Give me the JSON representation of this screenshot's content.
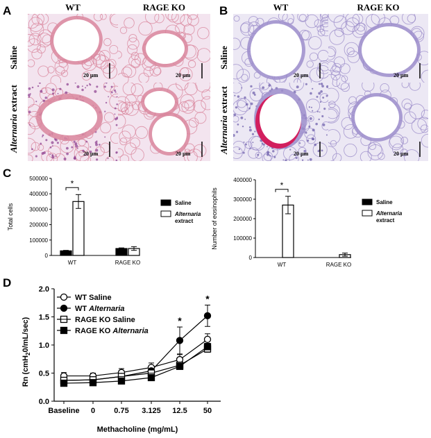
{
  "panels": {
    "A": {
      "letter": "A",
      "col_headers": [
        "WT",
        "RAGE KO"
      ],
      "row_headers": [
        {
          "parts": [
            {
              "text": "Saline",
              "italic": false
            }
          ]
        },
        {
          "parts": [
            {
              "text": "Alternaria",
              "italic": true
            },
            {
              "text": " extract",
              "italic": false
            }
          ]
        }
      ],
      "scale_bar": "20 µm"
    },
    "B": {
      "letter": "B",
      "col_headers": [
        "WT",
        "RAGE KO"
      ],
      "row_headers": [
        {
          "parts": [
            {
              "text": "Saline",
              "italic": false
            }
          ]
        },
        {
          "parts": [
            {
              "text": "Alternaria",
              "italic": true
            },
            {
              "text": " extract",
              "italic": false
            }
          ]
        }
      ],
      "scale_bar": "20 µm"
    },
    "C": {
      "letter": "C"
    },
    "D": {
      "letter": "D"
    }
  },
  "colors": {
    "he_background": "#f3e4ef",
    "he_tissue": "#d9879e",
    "pas_background": "#ece8f4",
    "pas_tissue": "#9e8ecb",
    "pas_mucus": "#d21f5e"
  },
  "chart_data": [
    {
      "id": "total-cells",
      "type": "bar",
      "categories": [
        "WT",
        "RAGE KO"
      ],
      "ylabel": "Total cells",
      "ylim": [
        0,
        500000
      ],
      "yticks": [
        0,
        100000,
        200000,
        300000,
        400000,
        500000
      ],
      "series": [
        {
          "name": "Saline",
          "fill": "#000000",
          "values": [
            30000,
            45000
          ],
          "errors": [
            3000,
            4000
          ]
        },
        {
          "name": "Alternaria extract",
          "name_italic": "Alternaria",
          "name_rest": "extract",
          "fill": "#ffffff",
          "values": [
            350000,
            45000
          ],
          "errors": [
            45000,
            12000
          ]
        }
      ],
      "significance": [
        {
          "category": "WT",
          "label": "*"
        }
      ],
      "legend": "right"
    },
    {
      "id": "eosinophils",
      "type": "bar",
      "categories": [
        "WT",
        "RAGE KO"
      ],
      "ylabel": "Number of eosinophils",
      "ylim": [
        0,
        400000
      ],
      "yticks": [
        0,
        100000,
        200000,
        300000,
        400000
      ],
      "series": [
        {
          "name": "Saline",
          "fill": "#000000",
          "values": [
            0,
            0
          ],
          "errors": [
            0,
            0
          ]
        },
        {
          "name": "Alternaria extract",
          "name_italic": "Alternaria",
          "name_rest": "extract",
          "fill": "#ffffff",
          "values": [
            270000,
            15000
          ],
          "errors": [
            45000,
            8000
          ]
        }
      ],
      "significance": [
        {
          "category": "WT",
          "label": "*"
        }
      ],
      "legend": "right"
    },
    {
      "id": "airway-resistance",
      "type": "line",
      "categories": [
        "Baseline",
        "0",
        "0.75",
        "3.125",
        "12.5",
        "50"
      ],
      "xlabel": "Methacholine (mg/mL)",
      "ylabel_parts": [
        "Rn (cmH",
        "2",
        "0/mL/sec)"
      ],
      "ylim": [
        0,
        2.0
      ],
      "yticks": [
        0.0,
        0.5,
        1.0,
        1.5,
        2.0
      ],
      "series": [
        {
          "name": "WT Saline",
          "name_plain": "WT Saline",
          "marker": "circle-open",
          "values": [
            0.45,
            0.45,
            0.51,
            0.6,
            0.74,
            1.1
          ],
          "errors": [
            0.06,
            0.05,
            0.07,
            0.08,
            0.09,
            0.1
          ]
        },
        {
          "name": "WT Alternaria",
          "name_plain": "WT ",
          "name_italic": "Alternaria",
          "marker": "circle-filled",
          "values": [
            0.37,
            0.38,
            0.44,
            0.54,
            1.08,
            1.52
          ],
          "errors": [
            0.05,
            0.05,
            0.06,
            0.08,
            0.24,
            0.19
          ]
        },
        {
          "name": "RAGE KO Saline",
          "name_plain": "RAGE KO Saline",
          "marker": "square-open",
          "values": [
            0.37,
            0.38,
            0.44,
            0.5,
            0.64,
            0.93
          ],
          "errors": [
            0.04,
            0.04,
            0.05,
            0.05,
            0.06,
            0.06
          ]
        },
        {
          "name": "RAGE KO Alternaria",
          "name_plain": "RAGE KO ",
          "name_italic": "Alternaria",
          "marker": "square-filled",
          "values": [
            0.32,
            0.33,
            0.36,
            0.42,
            0.62,
            0.97
          ],
          "errors": [
            0.04,
            0.04,
            0.04,
            0.04,
            0.05,
            0.06
          ]
        }
      ],
      "significance": [
        {
          "category": "12.5",
          "label": "*"
        },
        {
          "category": "50",
          "label": "*"
        }
      ],
      "legend": "top-left"
    }
  ]
}
